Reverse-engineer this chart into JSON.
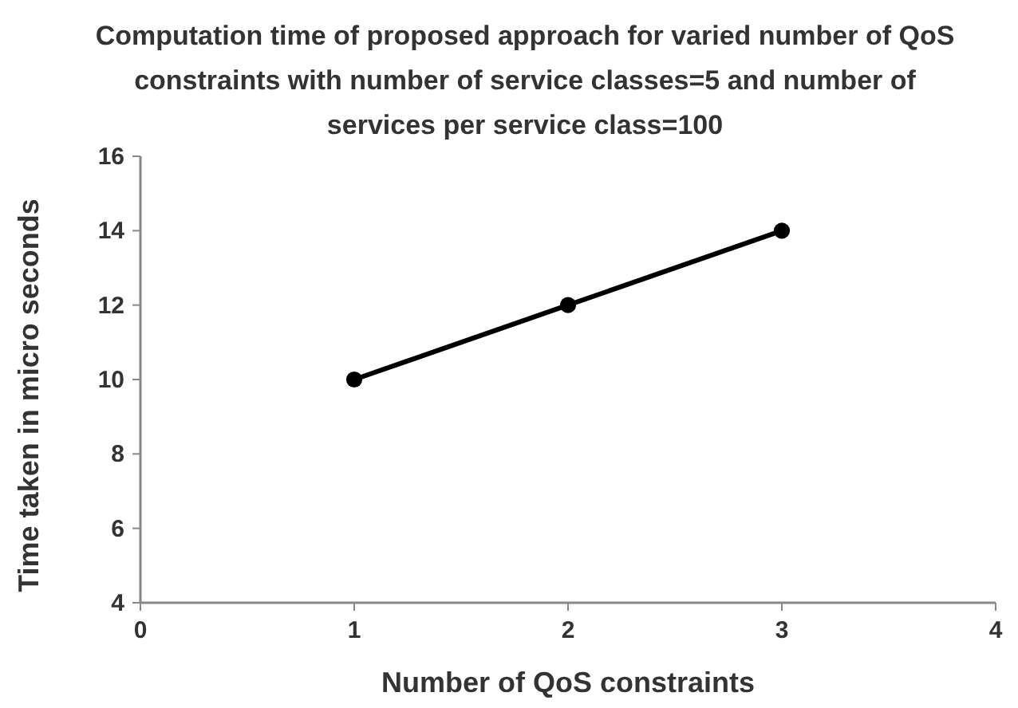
{
  "chart_data": {
    "type": "line",
    "title": "Computation time of proposed approach for varied number of QoS constraints with number of service classes=5 and number of services per service class=100",
    "xlabel": "Number of QoS constraints",
    "ylabel": "Time taken in micro seconds",
    "x": [
      1,
      2,
      3
    ],
    "series": [
      {
        "color": "#000000",
        "values": [
          10,
          12,
          14
        ]
      }
    ],
    "xlim": [
      0,
      4
    ],
    "xticks": [
      0,
      1,
      2,
      3,
      4
    ],
    "ylim": [
      4,
      16
    ],
    "yticks": [
      4,
      6,
      8,
      10,
      12,
      14,
      16
    ],
    "grid": false,
    "marker": "circle",
    "line_style": "solid"
  }
}
